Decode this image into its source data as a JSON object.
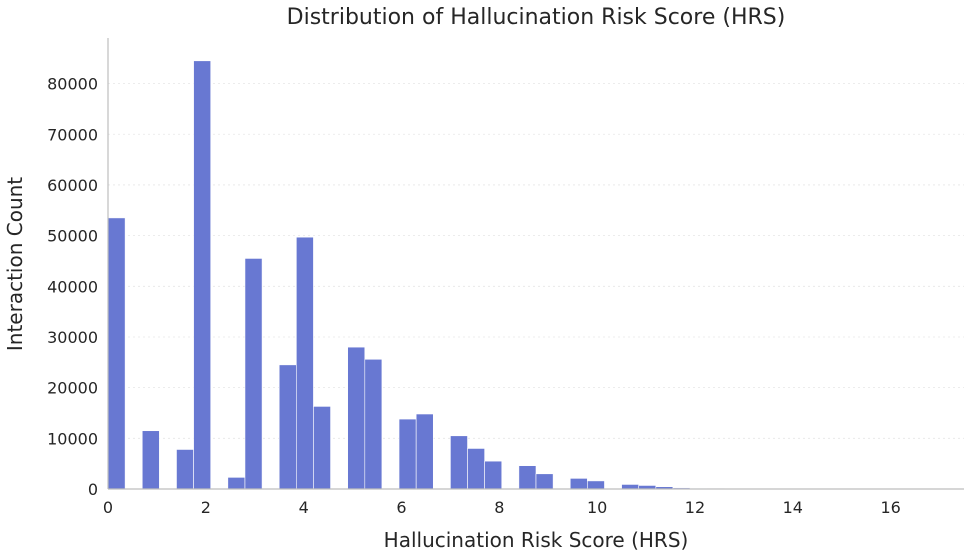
{
  "chart_data": {
    "type": "bar",
    "subtype": "histogram",
    "title": "Distribution of Hallucination Risk Score (HRS)",
    "xlabel": "Hallucination Risk Score (HRS)",
    "ylabel": "Interaction Count",
    "xlim": [
      0,
      17.5
    ],
    "ylim": [
      0,
      89000
    ],
    "xticks": [
      "0",
      "2",
      "4",
      "6",
      "8",
      "10",
      "12",
      "14",
      "16"
    ],
    "yticks": [
      "0",
      "10000",
      "20000",
      "30000",
      "40000",
      "50000",
      "60000",
      "70000",
      "80000"
    ],
    "bin_width": 0.35,
    "bins": [
      {
        "x0": 0.0,
        "x1": 0.35,
        "count": 53500
      },
      {
        "x0": 0.7,
        "x1": 1.05,
        "count": 11500
      },
      {
        "x0": 1.4,
        "x1": 1.75,
        "count": 7800
      },
      {
        "x0": 1.75,
        "x1": 2.1,
        "count": 84500
      },
      {
        "x0": 2.45,
        "x1": 2.8,
        "count": 2300
      },
      {
        "x0": 2.8,
        "x1": 3.15,
        "count": 45500
      },
      {
        "x0": 3.5,
        "x1": 3.85,
        "count": 24500
      },
      {
        "x0": 3.85,
        "x1": 4.2,
        "count": 49700
      },
      {
        "x0": 4.2,
        "x1": 4.55,
        "count": 16300
      },
      {
        "x0": 4.9,
        "x1": 5.25,
        "count": 28000
      },
      {
        "x0": 5.25,
        "x1": 5.6,
        "count": 25600
      },
      {
        "x0": 5.95,
        "x1": 6.3,
        "count": 13800
      },
      {
        "x0": 6.3,
        "x1": 6.65,
        "count": 14800
      },
      {
        "x0": 7.0,
        "x1": 7.35,
        "count": 10500
      },
      {
        "x0": 7.35,
        "x1": 7.7,
        "count": 8000
      },
      {
        "x0": 7.7,
        "x1": 8.05,
        "count": 5500
      },
      {
        "x0": 8.4,
        "x1": 8.75,
        "count": 4600
      },
      {
        "x0": 8.75,
        "x1": 9.1,
        "count": 3000
      },
      {
        "x0": 9.45,
        "x1": 9.8,
        "count": 2100
      },
      {
        "x0": 9.8,
        "x1": 10.15,
        "count": 1600
      },
      {
        "x0": 10.5,
        "x1": 10.85,
        "count": 900
      },
      {
        "x0": 10.85,
        "x1": 11.2,
        "count": 700
      },
      {
        "x0": 11.2,
        "x1": 11.55,
        "count": 450
      },
      {
        "x0": 11.55,
        "x1": 11.9,
        "count": 220
      },
      {
        "x0": 11.9,
        "x1": 12.25,
        "count": 160
      },
      {
        "x0": 12.25,
        "x1": 12.6,
        "count": 110
      },
      {
        "x0": 12.6,
        "x1": 12.95,
        "count": 80
      },
      {
        "x0": 12.95,
        "x1": 13.3,
        "count": 60
      },
      {
        "x0": 13.3,
        "x1": 13.65,
        "count": 45
      },
      {
        "x0": 13.65,
        "x1": 14.0,
        "count": 35
      },
      {
        "x0": 14.0,
        "x1": 14.35,
        "count": 25
      },
      {
        "x0": 14.35,
        "x1": 14.7,
        "count": 20
      },
      {
        "x0": 14.7,
        "x1": 15.05,
        "count": 15
      },
      {
        "x0": 15.05,
        "x1": 15.4,
        "count": 12
      },
      {
        "x0": 15.4,
        "x1": 15.75,
        "count": 10
      },
      {
        "x0": 15.75,
        "x1": 16.1,
        "count": 8
      },
      {
        "x0": 16.1,
        "x1": 16.45,
        "count": 6
      },
      {
        "x0": 16.45,
        "x1": 16.8,
        "count": 5
      },
      {
        "x0": 16.8,
        "x1": 17.15,
        "count": 4
      }
    ],
    "grid": {
      "y": true,
      "x": false,
      "style": "dotted"
    },
    "legend": "none",
    "colors": {
      "bar": "#6878d2",
      "axis": "#bdbdbd",
      "text": "#262626",
      "grid": "#e6e6e6"
    }
  }
}
